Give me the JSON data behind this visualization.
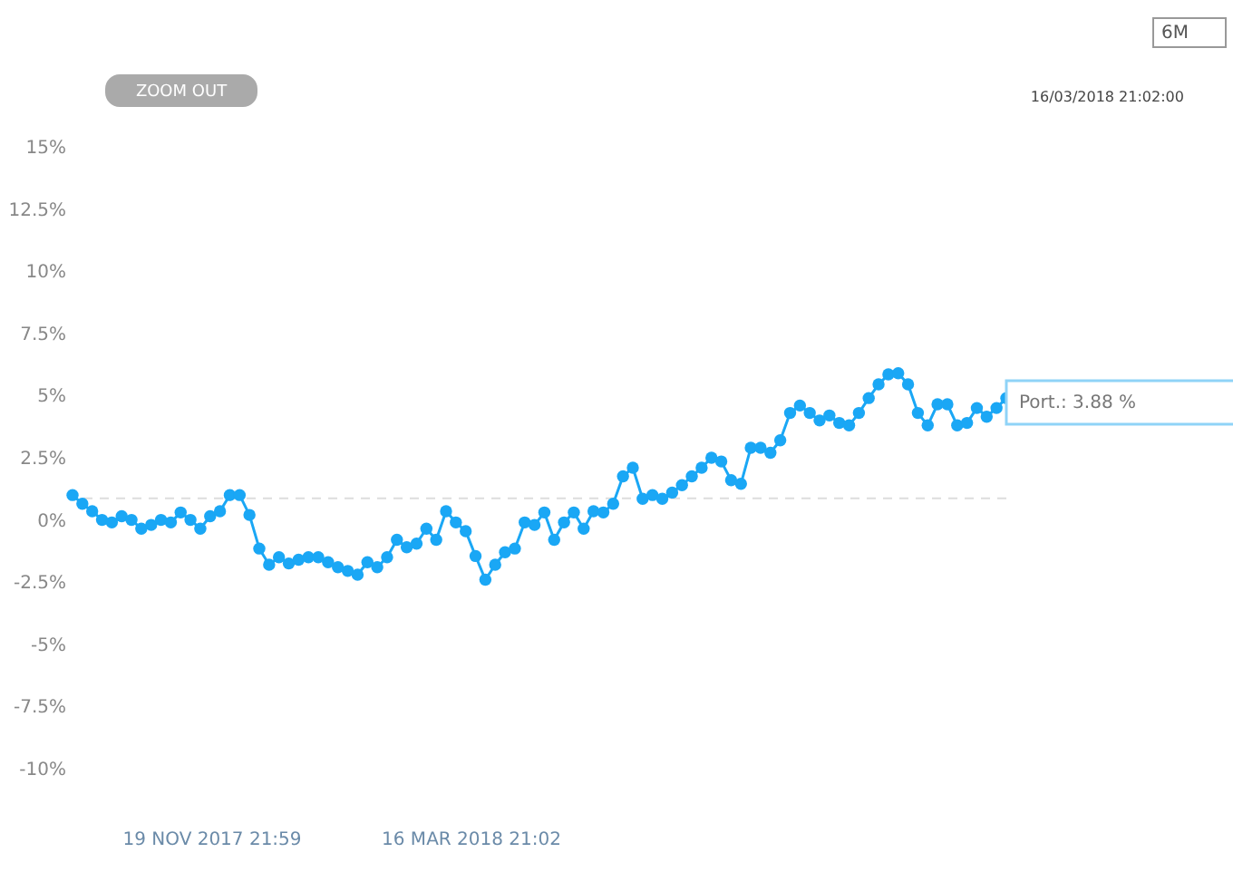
{
  "chart_data": {
    "type": "line",
    "marker": "circle",
    "line_style": "solid",
    "tick_labels": "y",
    "categories": [
      null,
      null,
      null,
      null,
      null,
      null,
      null,
      null,
      null,
      null,
      null,
      null,
      null,
      null,
      null,
      null,
      null,
      null,
      null,
      null,
      null,
      null,
      null,
      null,
      null,
      null,
      null,
      null,
      null,
      null,
      null,
      null,
      null,
      null,
      null,
      null,
      null,
      null,
      null,
      null,
      null,
      null,
      null,
      null,
      null,
      null,
      null,
      null,
      null,
      null,
      null,
      null,
      null,
      null,
      null,
      null,
      null,
      null,
      null,
      null,
      null,
      null,
      null,
      null,
      null,
      null,
      null,
      null,
      null,
      null,
      null,
      null,
      null,
      null,
      null,
      null,
      null,
      null,
      null,
      null,
      null,
      null,
      null,
      null,
      null,
      null,
      null,
      null,
      null,
      null,
      null,
      null,
      null,
      null,
      null,
      null
    ],
    "series": [
      {
        "color": "#1aa7f5",
        "values": [
          1.0,
          0.65,
          0.35,
          0,
          -0.1,
          0.15,
          0,
          -0.35,
          -0.2,
          0,
          -0.1,
          0.3,
          0,
          -0.35,
          0.15,
          0.35,
          1.0,
          1.0,
          0.2,
          -1.15,
          -1.8,
          -1.5,
          -1.75,
          -1.6,
          -1.5,
          -1.5,
          -1.7,
          -1.9,
          -2.05,
          -2.2,
          -1.7,
          -1.9,
          -1.5,
          -0.8,
          -1.1,
          -0.95,
          -0.35,
          -0.8,
          0.35,
          -0.1,
          -0.45,
          -1.45,
          -2.4,
          -1.8,
          -1.3,
          -1.15,
          -0.1,
          -0.2,
          0.3,
          -0.8,
          -0.1,
          0.3,
          -0.35,
          0.35,
          0.3,
          0.65,
          1.75,
          2.1,
          0.85,
          1.0,
          0.85,
          1.1,
          1.4,
          1.75,
          2.1,
          2.5,
          2.35,
          1.6,
          1.45,
          2.9,
          2.9,
          2.7,
          3.2,
          4.3,
          4.6,
          4.3,
          4.0,
          4.2,
          3.9,
          3.8,
          4.3,
          4.9,
          5.45,
          5.85,
          5.9,
          5.45,
          4.3,
          3.8,
          4.65,
          4.65,
          3.8,
          3.9,
          4.5,
          4.15,
          4.5,
          4.9
        ]
      }
    ],
    "ylim": [
      -10,
      15
    ],
    "yticks": [
      {
        "value": 15,
        "label": "15%"
      },
      {
        "value": 12.5,
        "label": "12.5%"
      },
      {
        "value": 10,
        "label": "10%"
      },
      {
        "value": 7.5,
        "label": "7.5%"
      },
      {
        "value": 5,
        "label": "5%"
      },
      {
        "value": 2.5,
        "label": "2.5%"
      },
      {
        "value": 0,
        "label": "0%"
      },
      {
        "value": -2.5,
        "label": "-2.5%"
      },
      {
        "value": -5,
        "label": "-5%"
      },
      {
        "value": -7.5,
        "label": "-7.5%"
      },
      {
        "value": -10,
        "label": "-10%"
      }
    ],
    "ref_lines": [
      {
        "axis": "y",
        "value": 0.87,
        "color": "#dddddd",
        "line_style": "dashed"
      }
    ],
    "annotations": [
      "6M",
      "ZOOM OUT",
      "16/03/2018 21:02:00",
      "Port.: 3.88 %",
      "19 NOV 2017 21:59",
      "16 MAR 2018 21:02"
    ]
  }
}
